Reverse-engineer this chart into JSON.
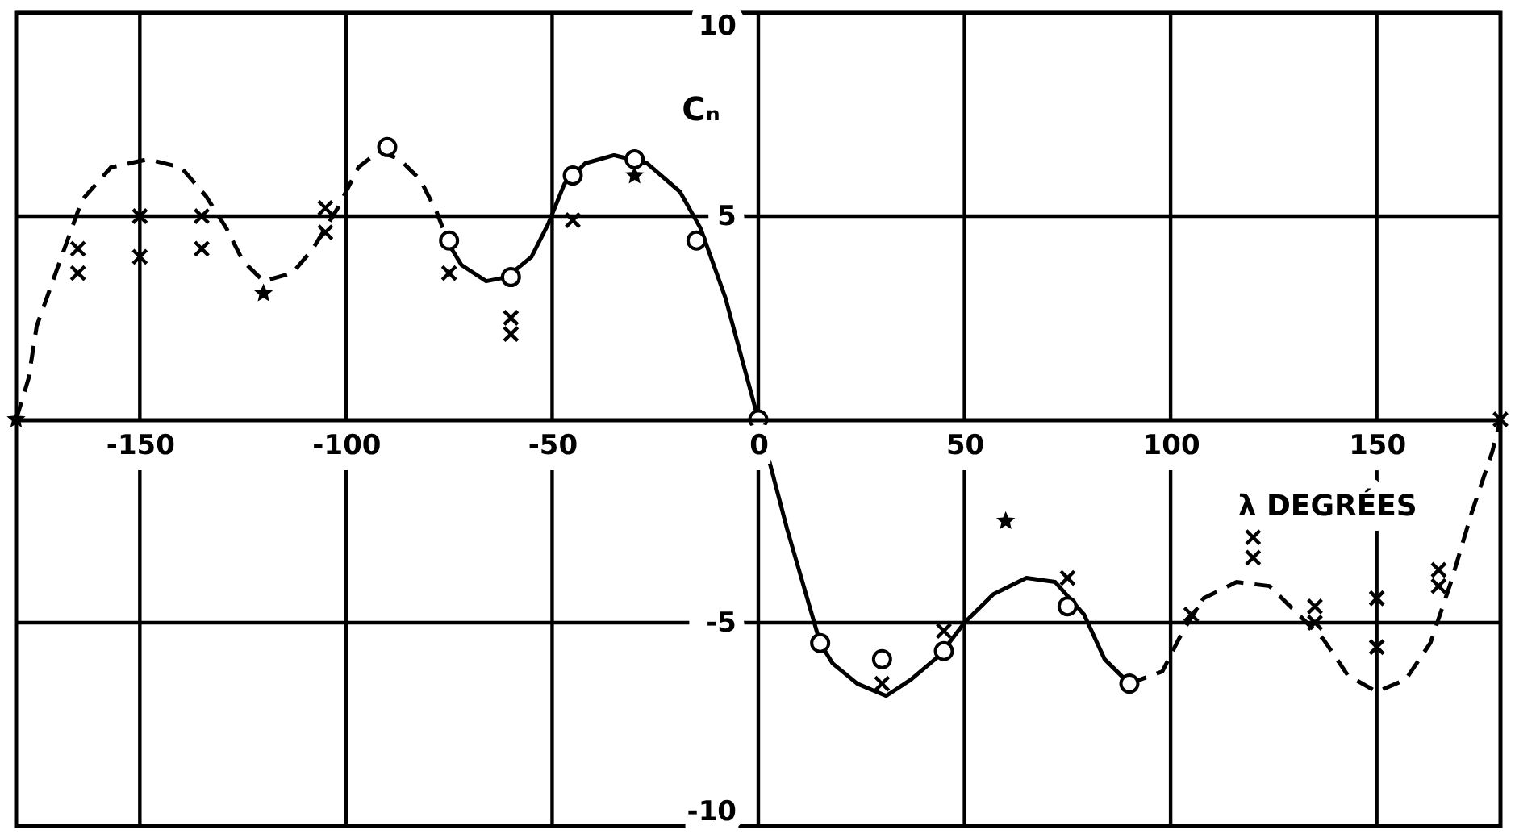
{
  "chart_data": {
    "type": "line",
    "xlabel": "λ DEGRÉES",
    "ylabel": "Cₙ",
    "xlim": [
      -180,
      180
    ],
    "ylim": [
      -10,
      10
    ],
    "xticks": [
      -150,
      -100,
      -50,
      0,
      50,
      100,
      150
    ],
    "yticks": [
      -10,
      -5,
      5,
      10
    ],
    "grid": true,
    "series": [
      {
        "type": "line",
        "line_style": "dashed",
        "marker": "none",
        "color": "#000000",
        "x": [
          -180,
          -177,
          -175,
          -169,
          -164,
          -157,
          -148,
          -140,
          -134,
          -129,
          -125,
          -120,
          -113,
          -108,
          -102,
          -97,
          -92,
          -87,
          -82,
          -78,
          -75
        ],
        "values": [
          0,
          1.0,
          2.3,
          4.0,
          5.4,
          6.2,
          6.4,
          6.2,
          5.5,
          4.7,
          3.9,
          3.4,
          3.6,
          4.2,
          5.2,
          6.2,
          6.6,
          6.4,
          5.9,
          5.1,
          4.3
        ]
      },
      {
        "type": "line",
        "line_style": "solid",
        "marker": "none",
        "color": "#000000",
        "x": [
          -75,
          -72,
          -66,
          -61,
          -55,
          -51,
          -47,
          -42,
          -35,
          -27,
          -19,
          -14,
          -8,
          0,
          7,
          15,
          18,
          24,
          31,
          37,
          44,
          50,
          57,
          65,
          72,
          79,
          84,
          90
        ],
        "values": [
          4.3,
          3.8,
          3.4,
          3.5,
          4.0,
          4.8,
          5.8,
          6.3,
          6.5,
          6.3,
          5.6,
          4.7,
          3.0,
          0,
          -2.7,
          -5.5,
          -6.0,
          -6.5,
          -6.8,
          -6.4,
          -5.8,
          -5.0,
          -4.3,
          -3.9,
          -4.0,
          -4.8,
          -5.9,
          -6.5
        ]
      },
      {
        "type": "line",
        "line_style": "dashed",
        "marker": "none",
        "color": "#000000",
        "x": [
          90,
          98,
          103,
          108,
          116,
          124,
          130,
          137,
          143,
          150,
          157,
          163,
          168,
          173,
          178,
          180
        ],
        "values": [
          -6.5,
          -6.2,
          -5.2,
          -4.4,
          -4.0,
          -4.1,
          -4.7,
          -5.4,
          -6.3,
          -6.7,
          -6.4,
          -5.5,
          -4.0,
          -2.3,
          -0.8,
          0
        ]
      },
      {
        "type": "scatter",
        "marker": "cross",
        "color": "#000000",
        "x": [
          -165,
          -150,
          -135,
          -105,
          -60,
          45,
          120,
          135,
          150,
          165,
          180,
          -165,
          -150,
          -135,
          -105,
          -75,
          -60,
          -45,
          30,
          75,
          105,
          120,
          135,
          150,
          165
        ],
        "values": [
          4.2,
          5.0,
          5.0,
          5.2,
          2.5,
          -5.2,
          -2.9,
          -5.0,
          -5.6,
          -4.1,
          0,
          3.6,
          4.0,
          4.2,
          4.6,
          3.6,
          2.1,
          4.9,
          -6.5,
          -3.9,
          -4.8,
          -3.4,
          -4.6,
          -4.4,
          -3.7
        ]
      },
      {
        "type": "scatter",
        "marker": "star",
        "color": "#000000",
        "x": [
          -180,
          -120,
          -30,
          60
        ],
        "values": [
          0,
          3.1,
          6.0,
          -2.5
        ]
      },
      {
        "type": "scatter",
        "marker": "circle",
        "color": "#000000",
        "x": [
          -90,
          -75,
          -60,
          -45,
          -30,
          -15,
          0,
          15,
          30,
          45,
          75,
          90
        ],
        "values": [
          6.7,
          4.4,
          3.5,
          6.0,
          6.4,
          4.4,
          0,
          -5.5,
          -5.9,
          -5.7,
          -4.6,
          -6.5
        ]
      }
    ]
  }
}
